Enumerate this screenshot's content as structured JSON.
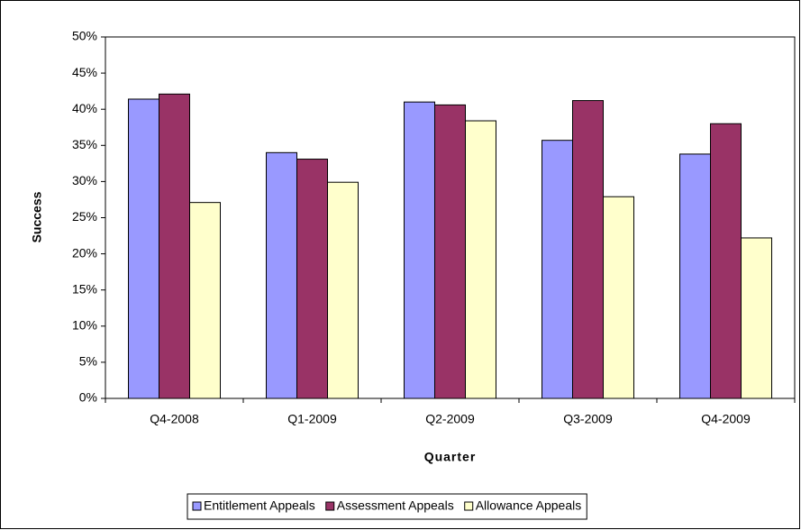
{
  "chart_data": {
    "type": "bar",
    "x_label": "Quarter",
    "y_label": "Success",
    "categories": [
      "Q4-2008",
      "Q1-2009",
      "Q2-2009",
      "Q3-2009",
      "Q4-2009"
    ],
    "series": [
      {
        "name": "Entitlement Appeals",
        "color": "#9999ff",
        "values": [
          41.4,
          34.0,
          41.0,
          35.7,
          33.8
        ]
      },
      {
        "name": "Assessment Appeals",
        "color": "#993366",
        "values": [
          42.1,
          33.1,
          40.6,
          41.2,
          38.0
        ]
      },
      {
        "name": "Allowance Appeals",
        "color": "#ffffcc",
        "values": [
          27.1,
          29.9,
          38.4,
          27.9,
          22.2
        ]
      }
    ],
    "ylim": [
      0,
      50
    ],
    "yticks": [
      {
        "value": 0,
        "label": "0%"
      },
      {
        "value": 5,
        "label": "5%"
      },
      {
        "value": 10,
        "label": "10%"
      },
      {
        "value": 15,
        "label": "15%"
      },
      {
        "value": 20,
        "label": "20%"
      },
      {
        "value": 25,
        "label": "25%"
      },
      {
        "value": 30,
        "label": "30%"
      },
      {
        "value": 35,
        "label": "35%"
      },
      {
        "value": 40,
        "label": "40%"
      },
      {
        "value": 45,
        "label": "45%"
      },
      {
        "value": 50,
        "label": "50%"
      }
    ],
    "grid": false,
    "legend": "bottom"
  }
}
